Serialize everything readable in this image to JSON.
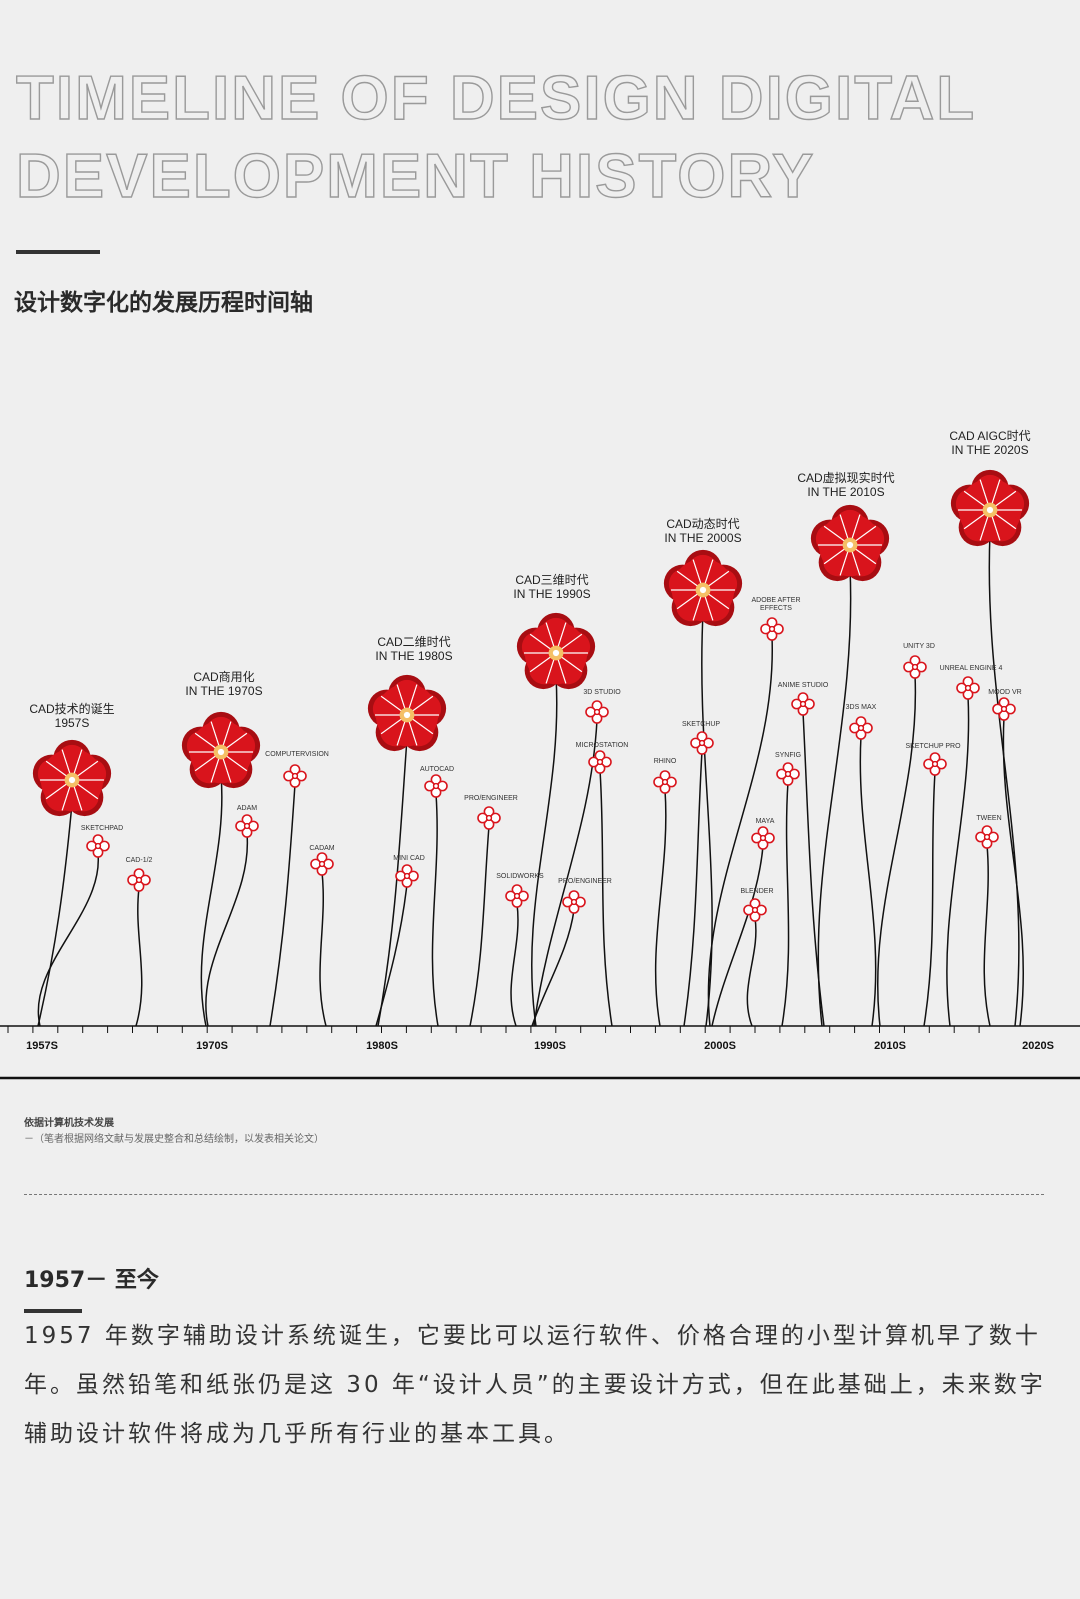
{
  "header": {
    "title_line1": "TIMELINE OF DESIGN DIGITAL",
    "title_line2": "DEVELOPMENT HISTORY",
    "subtitle": "设计数字化的发展历程时间轴"
  },
  "colors": {
    "flower_red": "#d9141c",
    "flower_dark": "#a80d12",
    "center": "#f5c066",
    "stem": "#111111"
  },
  "timeline": {
    "axis_labels": [
      "1957S",
      "1970S",
      "1980S",
      "1990S",
      "2000S",
      "2010S",
      "2020S"
    ],
    "eras": [
      {
        "line1": "CAD技术的诞生",
        "line2": "1957S"
      },
      {
        "line1": "CAD商用化",
        "line2": "IN THE 1970S"
      },
      {
        "line1": "CAD二维时代",
        "line2": "IN THE 1980S"
      },
      {
        "line1": "CAD三维时代",
        "line2": "IN THE 1990S"
      },
      {
        "line1": "CAD动态时代",
        "line2": "IN THE 2000S"
      },
      {
        "line1": "CAD虚拟现实时代",
        "line2": "IN THE 2010S"
      },
      {
        "line1": "CAD AIGC时代",
        "line2": "IN THE 2020S"
      }
    ],
    "software": [
      "SKETCHPAD",
      "CAD-1/2",
      "ADAM",
      "COMPUTERVISION",
      "CADAM",
      "MINI CAD",
      "AUTOCAD",
      "PRO/ENGINEER",
      "SOLIDWORKS",
      "3D STUDIO",
      "MICROSTATION",
      "PRO/ENGINEER",
      "RHINO",
      "SKETCHUP",
      "ADOBE AFTER EFFECTS",
      "MAYA",
      "BLENDER",
      "SYNFIG",
      "ANIME STUDIO",
      "3DS MAX",
      "UNITY 3D",
      "SKETCHUP PRO",
      "UNREAL ENGINE 4",
      "MOOD VR",
      "TWEEN"
    ]
  },
  "notes": {
    "title": "依据计算机技术发展",
    "source": "－（笔者根据网络文献与发展史整合和总结绘制，以发表相关论文）"
  },
  "section": {
    "period": "1957－ 至今",
    "body": "1957 年数字辅助设计系统诞生，它要比可以运行软件、价格合理的小型计算机早了数十年。虽然铅笔和纸张仍是这 30 年“设计人员”的主要设计方式，但在此基础上，未来数字辅助设计软件将成为几乎所有行业的基本工具。"
  }
}
